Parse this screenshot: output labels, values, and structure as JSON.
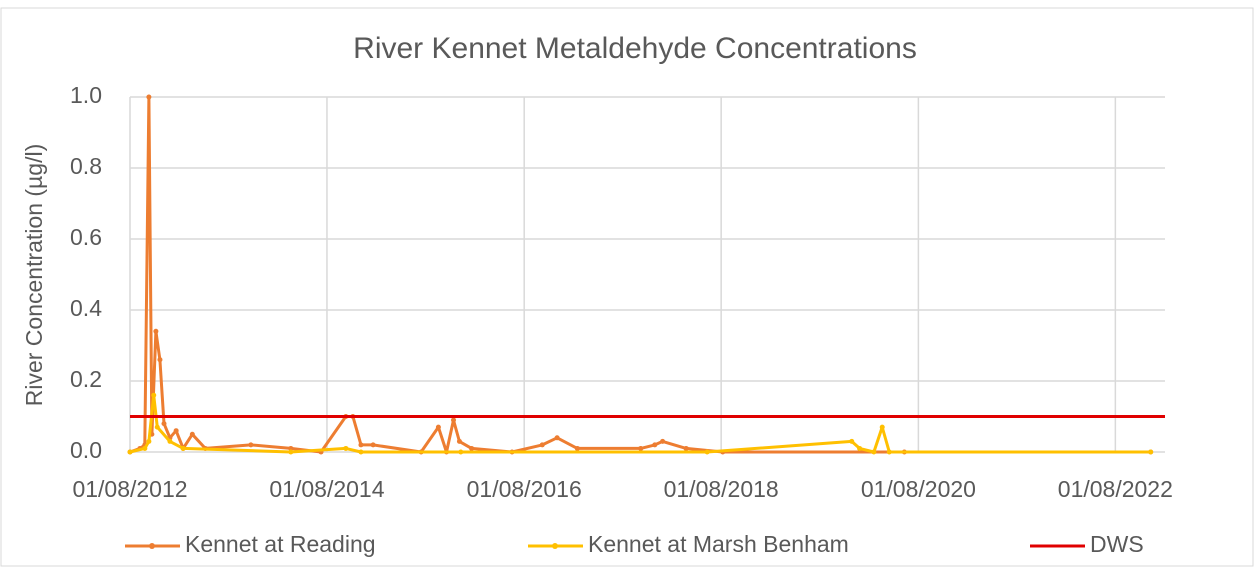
{
  "chart_data": {
    "type": "line",
    "title": "River Kennet Metaldehyde Concentrations",
    "y_label": "River Concentration (µg/l)",
    "xlim": [
      "01/08/2012",
      "01/02/2023"
    ],
    "xticks": [
      "01/08/2012",
      "01/08/2014",
      "01/08/2016",
      "01/08/2018",
      "01/08/2020",
      "01/08/2022"
    ],
    "ylim": [
      0,
      1
    ],
    "yticks": [
      {
        "value": 0,
        "label": "0.0"
      },
      {
        "value": 0.2,
        "label": "0.2"
      },
      {
        "value": 0.4,
        "label": "0.4"
      },
      {
        "value": 0.6,
        "label": "0.6"
      },
      {
        "value": 0.8,
        "label": "0.8"
      },
      {
        "value": 1,
        "label": "1.0"
      }
    ],
    "grid": true,
    "legend": "bottom",
    "series": [
      {
        "name": "Kennet at Reading",
        "color": "#ED7D31",
        "markers": true,
        "x": [
          "01/08/2012",
          "07/09/2012",
          "25/09/2012",
          "10/10/2012",
          "21/10/2012",
          "05/11/2012",
          "20/11/2012",
          "05/12/2012",
          "27/12/2012",
          "19/01/2013",
          "14/02/2013",
          "20/03/2013",
          "07/05/2013",
          "23/10/2013",
          "20/03/2014",
          "10/07/2014",
          "10/10/2014",
          "05/11/2014",
          "05/12/2014",
          "19/01/2015",
          "16/07/2015",
          "18/09/2015",
          "18/10/2015",
          "13/11/2015",
          "05/12/2015",
          "19/01/2016",
          "17/06/2016",
          "07/10/2016",
          "01/12/2016",
          "14/02/2017",
          "07/10/2017",
          "28/11/2017",
          "27/12/2017",
          "24/03/2018",
          "07/08/2018",
          "10/06/2020",
          "10/12/2022"
        ],
        "values": [
          0.0,
          0.01,
          0.02,
          1.0,
          0.05,
          0.34,
          0.26,
          0.08,
          0.04,
          0.06,
          0.01,
          0.05,
          0.01,
          0.02,
          0.01,
          0.0,
          0.1,
          0.1,
          0.02,
          0.02,
          0.0,
          0.07,
          0.0,
          0.09,
          0.03,
          0.01,
          0.0,
          0.02,
          0.04,
          0.01,
          0.01,
          0.02,
          0.03,
          0.01,
          0.0,
          0.0,
          0.0
        ]
      },
      {
        "name": "Kennet at Marsh Benham",
        "color": "#FFC000",
        "markers": true,
        "x": [
          "01/08/2012",
          "25/09/2012",
          "10/10/2012",
          "28/10/2012",
          "10/11/2012",
          "27/12/2012",
          "14/02/2013",
          "20/03/2014",
          "10/10/2014",
          "05/12/2014",
          "10/12/2015",
          "10/06/2018",
          "28/11/2019",
          "27/12/2019",
          "18/02/2020",
          "20/03/2020",
          "15/04/2020",
          "10/12/2022"
        ],
        "values": [
          0.0,
          0.01,
          0.03,
          0.16,
          0.07,
          0.03,
          0.01,
          0.0,
          0.01,
          0.0,
          0.0,
          0.0,
          0.03,
          0.01,
          0.0,
          0.07,
          0.0,
          0.0
        ]
      },
      {
        "name": "DWS",
        "color": "#E00000",
        "markers": false,
        "x": [
          "01/08/2012",
          "01/02/2023"
        ],
        "values": [
          0.1,
          0.1
        ]
      }
    ]
  }
}
